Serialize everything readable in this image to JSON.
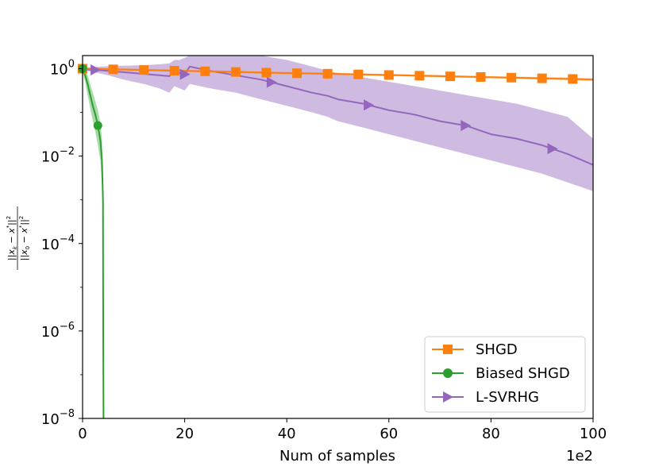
{
  "chart_data": {
    "type": "line",
    "title": "",
    "xlabel": "Num of samples",
    "x_offset_label": "1e2",
    "ylabel": "||x_k − x*||² / ||x_0 − x*||²",
    "ylabel_parts": {
      "num_a": "||",
      "num_x": "x",
      "num_k": "k",
      "num_minus": " − ",
      "num_star": "*",
      "num_b": "||",
      "num_sq": "2",
      "den_a": "||",
      "den_x": "x",
      "den_0": "0",
      "den_minus": " − ",
      "den_star": "*",
      "den_b": "||",
      "den_sq": "2"
    },
    "xlim": [
      0,
      100
    ],
    "ylim_log10": [
      -8,
      0.3
    ],
    "y_scale": "log",
    "x_ticks": [
      0,
      20,
      40,
      60,
      80,
      100
    ],
    "x_tick_labels": [
      "0",
      "20",
      "40",
      "60",
      "80",
      "100"
    ],
    "y_ticks": [
      {
        "base": "10",
        "exp": "0",
        "log10": 0
      },
      {
        "base": "10",
        "exp": "−2",
        "log10": -2
      },
      {
        "base": "10",
        "exp": "−4",
        "log10": -4
      },
      {
        "base": "10",
        "exp": "−6",
        "log10": -6
      },
      {
        "base": "10",
        "exp": "−8",
        "log10": -8
      }
    ],
    "legend_position": "lower-right",
    "series": [
      {
        "name": "SHGD",
        "color": "#ff7f0e",
        "marker": "square",
        "x": [
          0,
          6,
          12,
          18,
          24,
          30,
          36,
          42,
          48,
          54,
          60,
          66,
          72,
          78,
          84,
          90,
          96,
          100
        ],
        "y_log10": [
          0,
          -0.015,
          -0.03,
          -0.045,
          -0.06,
          -0.075,
          -0.09,
          -0.105,
          -0.115,
          -0.13,
          -0.145,
          -0.16,
          -0.175,
          -0.19,
          -0.205,
          -0.22,
          -0.235,
          -0.25
        ],
        "band_lower_log10": [
          -0.02,
          -0.04,
          -0.055,
          -0.07,
          -0.085,
          -0.1,
          -0.115,
          -0.13,
          -0.14,
          -0.155,
          -0.17,
          -0.185,
          -0.2,
          -0.215,
          -0.23,
          -0.25,
          -0.265,
          -0.28
        ],
        "band_upper_log10": [
          0.02,
          0.01,
          -0.005,
          -0.02,
          -0.035,
          -0.05,
          -0.065,
          -0.08,
          -0.09,
          -0.105,
          -0.12,
          -0.135,
          -0.15,
          -0.165,
          -0.18,
          -0.19,
          -0.205,
          -0.22
        ],
        "marker_x": [
          0,
          6,
          12,
          18,
          24,
          30,
          36,
          42,
          48,
          54,
          60,
          66,
          72,
          78,
          84,
          90,
          96
        ]
      },
      {
        "name": "Biased SHGD",
        "color": "#2ca02c",
        "marker": "circle",
        "x": [
          0,
          0.5,
          1,
          1.5,
          2,
          2.5,
          3,
          3.5,
          3.8,
          4,
          4.05,
          4.1
        ],
        "y_log10": [
          0,
          -0.15,
          -0.35,
          -0.6,
          -0.85,
          -1.05,
          -1.3,
          -1.65,
          -2.1,
          -3.0,
          -6.0,
          -8.0
        ],
        "band_lower_log10": [
          -0.05,
          -0.3,
          -0.6,
          -0.9,
          -1.2,
          -1.45,
          -1.75,
          -2.1,
          -2.6,
          -3.5,
          -8,
          -8
        ],
        "band_upper_log10": [
          0.05,
          -0.05,
          -0.15,
          -0.35,
          -0.55,
          -0.75,
          -0.95,
          -1.25,
          -1.6,
          -2.5,
          -5.0,
          -8
        ],
        "marker_x": [
          0,
          3
        ]
      },
      {
        "name": "L-SVRHG",
        "color": "#9467bd",
        "marker": "triangle-right",
        "x": [
          0,
          1,
          3,
          5,
          8,
          12,
          15,
          17,
          18,
          19,
          20,
          21,
          25,
          30,
          35,
          40,
          45,
          48,
          50,
          55,
          60,
          65,
          70,
          75,
          80,
          85,
          90,
          95,
          100
        ],
        "y_log10": [
          0,
          -0.02,
          -0.03,
          -0.05,
          -0.08,
          -0.12,
          -0.15,
          -0.17,
          -0.05,
          -0.1,
          -0.13,
          0.05,
          -0.05,
          -0.15,
          -0.25,
          -0.4,
          -0.55,
          -0.62,
          -0.7,
          -0.8,
          -0.95,
          -1.05,
          -1.2,
          -1.3,
          -1.5,
          -1.6,
          -1.75,
          -1.95,
          -2.2
        ],
        "band_lower_log10": [
          -0.02,
          -0.05,
          -0.1,
          -0.15,
          -0.25,
          -0.35,
          -0.45,
          -0.55,
          -0.4,
          -0.45,
          -0.5,
          -0.35,
          -0.45,
          -0.55,
          -0.7,
          -0.85,
          -1.0,
          -1.1,
          -1.2,
          -1.35,
          -1.5,
          -1.65,
          -1.8,
          -1.95,
          -2.1,
          -2.25,
          -2.4,
          -2.6,
          -2.8
        ],
        "band_upper_log10": [
          0.02,
          0.03,
          0.04,
          0.06,
          0.07,
          0.08,
          0.1,
          0.12,
          0.2,
          0.2,
          0.25,
          0.3,
          0.3,
          0.3,
          0.3,
          0.2,
          0.05,
          -0.05,
          -0.1,
          -0.2,
          -0.3,
          -0.4,
          -0.5,
          -0.6,
          -0.7,
          -0.8,
          -0.95,
          -1.1,
          -1.6
        ],
        "marker_x": [
          2.5,
          20,
          37,
          56,
          75,
          92
        ]
      }
    ]
  }
}
